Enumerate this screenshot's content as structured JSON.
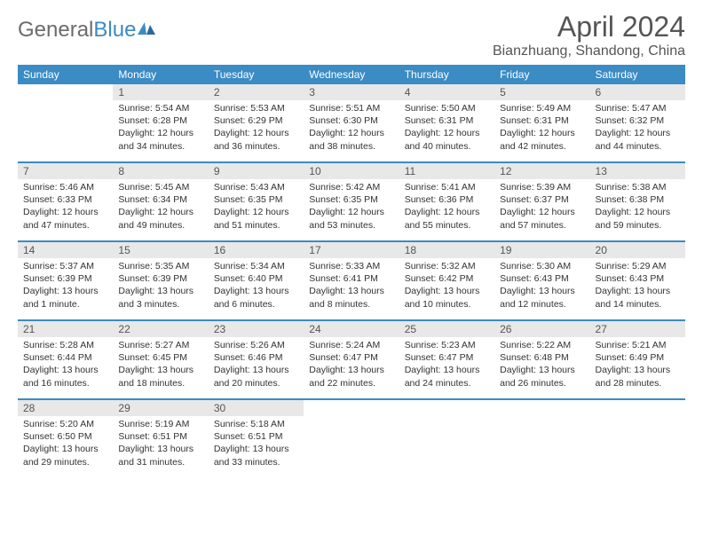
{
  "logo": {
    "text1": "General",
    "text2": "Blue"
  },
  "title": "April 2024",
  "location": "Bianzhuang, Shandong, China",
  "colors": {
    "header_bg": "#3b8bc4",
    "header_fg": "#ffffff",
    "daynum_bg": "#e8e8e8",
    "text": "#333333",
    "divider": "#3b8bc4"
  },
  "daynames": [
    "Sunday",
    "Monday",
    "Tuesday",
    "Wednesday",
    "Thursday",
    "Friday",
    "Saturday"
  ],
  "weeks": [
    {
      "nums": [
        "",
        "1",
        "2",
        "3",
        "4",
        "5",
        "6"
      ],
      "cells": [
        {},
        {
          "sunrise": "5:54 AM",
          "sunset": "6:28 PM",
          "daylight": "12 hours and 34 minutes."
        },
        {
          "sunrise": "5:53 AM",
          "sunset": "6:29 PM",
          "daylight": "12 hours and 36 minutes."
        },
        {
          "sunrise": "5:51 AM",
          "sunset": "6:30 PM",
          "daylight": "12 hours and 38 minutes."
        },
        {
          "sunrise": "5:50 AM",
          "sunset": "6:31 PM",
          "daylight": "12 hours and 40 minutes."
        },
        {
          "sunrise": "5:49 AM",
          "sunset": "6:31 PM",
          "daylight": "12 hours and 42 minutes."
        },
        {
          "sunrise": "5:47 AM",
          "sunset": "6:32 PM",
          "daylight": "12 hours and 44 minutes."
        }
      ]
    },
    {
      "nums": [
        "7",
        "8",
        "9",
        "10",
        "11",
        "12",
        "13"
      ],
      "cells": [
        {
          "sunrise": "5:46 AM",
          "sunset": "6:33 PM",
          "daylight": "12 hours and 47 minutes."
        },
        {
          "sunrise": "5:45 AM",
          "sunset": "6:34 PM",
          "daylight": "12 hours and 49 minutes."
        },
        {
          "sunrise": "5:43 AM",
          "sunset": "6:35 PM",
          "daylight": "12 hours and 51 minutes."
        },
        {
          "sunrise": "5:42 AM",
          "sunset": "6:35 PM",
          "daylight": "12 hours and 53 minutes."
        },
        {
          "sunrise": "5:41 AM",
          "sunset": "6:36 PM",
          "daylight": "12 hours and 55 minutes."
        },
        {
          "sunrise": "5:39 AM",
          "sunset": "6:37 PM",
          "daylight": "12 hours and 57 minutes."
        },
        {
          "sunrise": "5:38 AM",
          "sunset": "6:38 PM",
          "daylight": "12 hours and 59 minutes."
        }
      ]
    },
    {
      "nums": [
        "14",
        "15",
        "16",
        "17",
        "18",
        "19",
        "20"
      ],
      "cells": [
        {
          "sunrise": "5:37 AM",
          "sunset": "6:39 PM",
          "daylight": "13 hours and 1 minute."
        },
        {
          "sunrise": "5:35 AM",
          "sunset": "6:39 PM",
          "daylight": "13 hours and 3 minutes."
        },
        {
          "sunrise": "5:34 AM",
          "sunset": "6:40 PM",
          "daylight": "13 hours and 6 minutes."
        },
        {
          "sunrise": "5:33 AM",
          "sunset": "6:41 PM",
          "daylight": "13 hours and 8 minutes."
        },
        {
          "sunrise": "5:32 AM",
          "sunset": "6:42 PM",
          "daylight": "13 hours and 10 minutes."
        },
        {
          "sunrise": "5:30 AM",
          "sunset": "6:43 PM",
          "daylight": "13 hours and 12 minutes."
        },
        {
          "sunrise": "5:29 AM",
          "sunset": "6:43 PM",
          "daylight": "13 hours and 14 minutes."
        }
      ]
    },
    {
      "nums": [
        "21",
        "22",
        "23",
        "24",
        "25",
        "26",
        "27"
      ],
      "cells": [
        {
          "sunrise": "5:28 AM",
          "sunset": "6:44 PM",
          "daylight": "13 hours and 16 minutes."
        },
        {
          "sunrise": "5:27 AM",
          "sunset": "6:45 PM",
          "daylight": "13 hours and 18 minutes."
        },
        {
          "sunrise": "5:26 AM",
          "sunset": "6:46 PM",
          "daylight": "13 hours and 20 minutes."
        },
        {
          "sunrise": "5:24 AM",
          "sunset": "6:47 PM",
          "daylight": "13 hours and 22 minutes."
        },
        {
          "sunrise": "5:23 AM",
          "sunset": "6:47 PM",
          "daylight": "13 hours and 24 minutes."
        },
        {
          "sunrise": "5:22 AM",
          "sunset": "6:48 PM",
          "daylight": "13 hours and 26 minutes."
        },
        {
          "sunrise": "5:21 AM",
          "sunset": "6:49 PM",
          "daylight": "13 hours and 28 minutes."
        }
      ]
    },
    {
      "nums": [
        "28",
        "29",
        "30",
        "",
        "",
        "",
        ""
      ],
      "cells": [
        {
          "sunrise": "5:20 AM",
          "sunset": "6:50 PM",
          "daylight": "13 hours and 29 minutes."
        },
        {
          "sunrise": "5:19 AM",
          "sunset": "6:51 PM",
          "daylight": "13 hours and 31 minutes."
        },
        {
          "sunrise": "5:18 AM",
          "sunset": "6:51 PM",
          "daylight": "13 hours and 33 minutes."
        },
        {},
        {},
        {},
        {}
      ]
    }
  ]
}
